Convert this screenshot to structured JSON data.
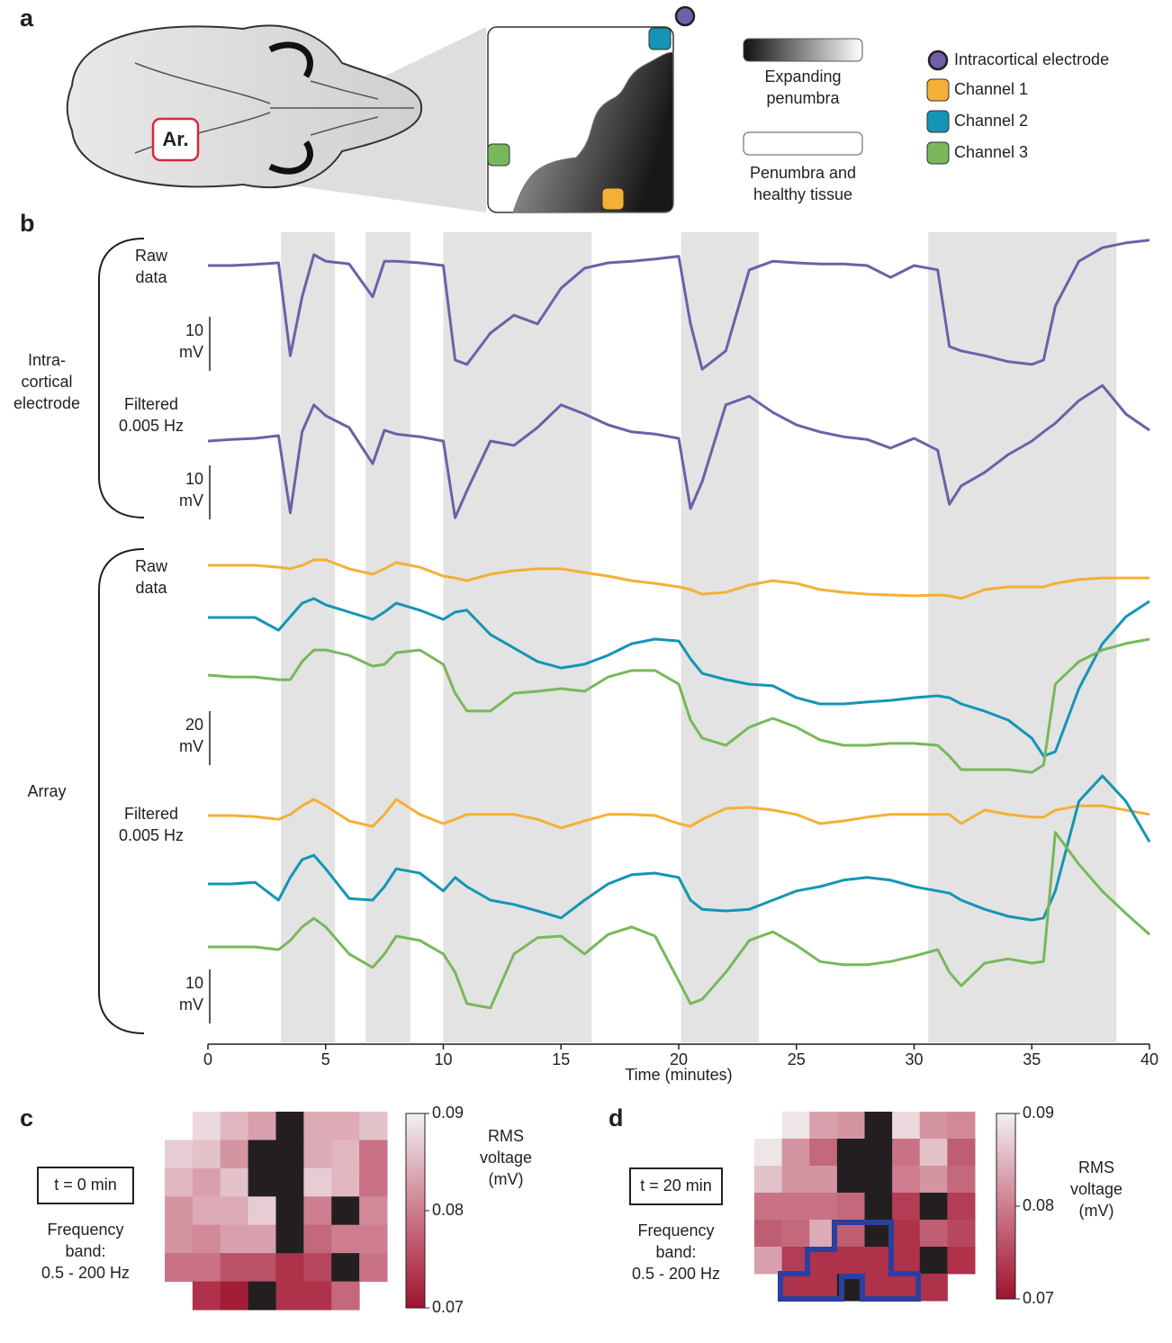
{
  "panel_labels": [
    "a",
    "b",
    "c",
    "d"
  ],
  "panel_a": {
    "region_label": "Ar.",
    "legend_gradient": [
      "Expanding",
      "penumbra"
    ],
    "legend_white": [
      "Penumbra and",
      "healthy tissue"
    ],
    "legend": [
      {
        "label": "Intracortical electrode",
        "color": "#6f5fa8",
        "shape": "circle"
      },
      {
        "label": "Channel 1",
        "color": "#f4b036",
        "shape": "square"
      },
      {
        "label": "Channel 2",
        "color": "#1595b5",
        "shape": "square"
      },
      {
        "label": "Channel 3",
        "color": "#78b85a",
        "shape": "square"
      }
    ]
  },
  "chart_data": [
    {
      "type": "line",
      "xlabel": "Time (minutes)",
      "xlim": [
        0,
        40
      ],
      "xticks": [
        0,
        5,
        10,
        15,
        20,
        25,
        30,
        35,
        40
      ],
      "shaded": [
        [
          3.1,
          5.4
        ],
        [
          6.7,
          8.6
        ],
        [
          10,
          16.3
        ],
        [
          20.1,
          23.4
        ],
        [
          30.6,
          38.6
        ]
      ],
      "shade_color": "#e3e3e3",
      "x": [
        0,
        1,
        2,
        3,
        3.5,
        4,
        4.5,
        5,
        6,
        7,
        7.5,
        8,
        9,
        10,
        10.5,
        11,
        12,
        13,
        14,
        15,
        16,
        17,
        18,
        19,
        20,
        20.5,
        21,
        22,
        23,
        24,
        25,
        26,
        27,
        28,
        29,
        30,
        31,
        31.5,
        32,
        33,
        34,
        35,
        35.5,
        36,
        37,
        38,
        39,
        40
      ],
      "groups": [
        {
          "label": [
            "Intra-",
            "cortical",
            "electrode"
          ],
          "rows": [
            {
              "label": [
                "Raw",
                "data"
              ],
              "scale_bar": 10,
              "unit": "mV",
              "series": [
                {
                  "color": "#6f5fa8",
                  "values": [
                    0,
                    0,
                    0.2,
                    0.5,
                    -16.7,
                    -5.8,
                    2,
                    0.8,
                    0.3,
                    -5.8,
                    0.8,
                    0.8,
                    0.5,
                    0,
                    -17.5,
                    -18.3,
                    -12.5,
                    -9.2,
                    -10.8,
                    -4.2,
                    -0.5,
                    0.5,
                    0.8,
                    1.2,
                    1.7,
                    -10.8,
                    -19.2,
                    -15.8,
                    -0.8,
                    0.8,
                    0.5,
                    0.3,
                    0.3,
                    0,
                    -2.2,
                    0,
                    -0.8,
                    -15,
                    -15.8,
                    -16.7,
                    -17.8,
                    -18.3,
                    -17.5,
                    -7.5,
                    0.8,
                    3.3,
                    4.2,
                    4.7
                  ]
                }
              ]
            },
            {
              "label": [
                "Filtered",
                "0.005 Hz"
              ],
              "scale_bar": 10,
              "unit": "mV",
              "series": [
                {
                  "color": "#6f5fa8",
                  "values": [
                    0,
                    0.3,
                    0.5,
                    1,
                    -13.3,
                    1.7,
                    6.7,
                    4.7,
                    2.5,
                    -4.2,
                    2,
                    1.3,
                    0.8,
                    0,
                    -14.2,
                    -9.2,
                    0,
                    -0.8,
                    2.5,
                    6.7,
                    5,
                    3,
                    1.7,
                    1.3,
                    0.5,
                    -12.5,
                    -7.5,
                    6.7,
                    8.3,
                    5.3,
                    3,
                    1.7,
                    0.8,
                    0.3,
                    -1.3,
                    0.5,
                    -1.7,
                    -11.7,
                    -8.3,
                    -5.8,
                    -2.5,
                    0,
                    1.7,
                    3.3,
                    7.5,
                    10.3,
                    5,
                    2
                  ]
                }
              ]
            }
          ]
        },
        {
          "label": [
            "Array"
          ],
          "rows": [
            {
              "label": [
                "Raw",
                "data"
              ],
              "scale_bar": 20,
              "unit": "mV",
              "series": [
                {
                  "color": "#f4b036",
                  "values": [
                    0,
                    0,
                    0,
                    -0.7,
                    -1.3,
                    0,
                    2,
                    2,
                    -1.3,
                    -3.3,
                    -1.3,
                    1,
                    -0.7,
                    -4,
                    -4.7,
                    -5.7,
                    -3.3,
                    -2,
                    -1.3,
                    -1.3,
                    -2.7,
                    -4,
                    -5.7,
                    -6.7,
                    -8,
                    -9,
                    -10.7,
                    -10,
                    -7.3,
                    -5.7,
                    -6.7,
                    -9,
                    -10,
                    -10.7,
                    -11,
                    -11.3,
                    -11,
                    -11.3,
                    -12.3,
                    -9,
                    -8,
                    -8,
                    -8,
                    -6.7,
                    -5.3,
                    -4.7,
                    -4.7,
                    -4.7
                  ]
                },
                {
                  "color": "#1595b5",
                  "values": [
                    0,
                    0,
                    0,
                    -4.7,
                    0.3,
                    5.3,
                    7,
                    4.7,
                    2,
                    -0.7,
                    2,
                    5.3,
                    2.7,
                    -0.7,
                    2,
                    2.7,
                    -6.3,
                    -11.3,
                    -16.3,
                    -18.7,
                    -17.3,
                    -14,
                    -9.7,
                    -8,
                    -8.7,
                    -15.3,
                    -20.7,
                    -23,
                    -24.7,
                    -25.3,
                    -29.7,
                    -32,
                    -32,
                    -31.3,
                    -30.7,
                    -29.7,
                    -29,
                    -29.7,
                    -32,
                    -34.7,
                    -38,
                    -44.7,
                    -51.3,
                    -49.7,
                    -26.3,
                    -9.7,
                    0.3,
                    6
                  ]
                },
                {
                  "color": "#78b85a",
                  "values": [
                    0,
                    -0.7,
                    -0.7,
                    -1.7,
                    -1.7,
                    5,
                    9.3,
                    9.3,
                    7.3,
                    3.3,
                    4,
                    8.3,
                    9.3,
                    4,
                    -6.7,
                    -13.3,
                    -13.3,
                    -6.7,
                    -6,
                    -5,
                    -6,
                    -0.7,
                    1.7,
                    1.7,
                    -3.3,
                    -16.7,
                    -23.3,
                    -26,
                    -19.3,
                    -16,
                    -19.3,
                    -24,
                    -26,
                    -26,
                    -25.3,
                    -25.3,
                    -26,
                    -30,
                    -35,
                    -35,
                    -35,
                    -36,
                    -33.3,
                    -3.3,
                    5,
                    9.3,
                    11.7,
                    13.3
                  ]
                }
              ]
            },
            {
              "label": [
                "Filtered",
                "0.005 Hz"
              ],
              "scale_bar": 10,
              "unit": "mV",
              "series": [
                {
                  "color": "#f4b036",
                  "values": [
                    0,
                    0,
                    -0.2,
                    -0.7,
                    0.2,
                    1.8,
                    3,
                    1.8,
                    -1,
                    -2,
                    0.2,
                    3,
                    0.2,
                    -1.5,
                    -0.7,
                    0.2,
                    0.2,
                    0.2,
                    -0.7,
                    -2.3,
                    -1,
                    0.2,
                    0.2,
                    0,
                    -1.5,
                    -2,
                    -0.7,
                    1.3,
                    1.5,
                    1,
                    0.2,
                    -1.5,
                    -1,
                    -0.3,
                    0.2,
                    0.2,
                    0.2,
                    0.2,
                    -1.5,
                    1,
                    0.2,
                    -0.3,
                    -0.3,
                    1,
                    1.8,
                    1.8,
                    1,
                    0.2
                  ]
                },
                {
                  "color": "#1595b5",
                  "values": [
                    0,
                    0,
                    0.3,
                    -3,
                    1.2,
                    4.5,
                    5.3,
                    2.8,
                    -2.7,
                    -3,
                    -0.5,
                    2.8,
                    2,
                    -1.3,
                    1.2,
                    -0.5,
                    -3,
                    -3.8,
                    -5,
                    -6.3,
                    -3,
                    0,
                    1.7,
                    2,
                    1.2,
                    -3,
                    -4.7,
                    -5,
                    -4.7,
                    -3,
                    -1.3,
                    -0.5,
                    0.7,
                    1.2,
                    0.7,
                    -0.5,
                    -1.3,
                    -1.7,
                    -3,
                    -4.7,
                    -6,
                    -6.7,
                    -6.3,
                    -1.3,
                    15.3,
                    20,
                    15.3,
                    7.8
                  ]
                },
                {
                  "color": "#78b85a",
                  "values": [
                    0,
                    0,
                    0,
                    -0.5,
                    1.2,
                    3.7,
                    5.3,
                    3.7,
                    -1.3,
                    -3.8,
                    -1.3,
                    2,
                    1.2,
                    -1.3,
                    -4.7,
                    -10.5,
                    -11.3,
                    -1.3,
                    1.7,
                    2,
                    -1.3,
                    2.3,
                    3.7,
                    2,
                    -6.3,
                    -10.5,
                    -9.7,
                    -4.7,
                    1.2,
                    2.8,
                    0.3,
                    -2.7,
                    -3.3,
                    -3.3,
                    -2.7,
                    -1.7,
                    -0.5,
                    -4.7,
                    -7.2,
                    -3,
                    -2.2,
                    -3,
                    -2.7,
                    21.2,
                    15.3,
                    10.3,
                    6.2,
                    2.3
                  ]
                }
              ]
            }
          ]
        }
      ]
    },
    {
      "type": "heatmap",
      "box_text": "t = 0 min",
      "annotation": [
        "Frequency",
        "band:",
        "0.5 - 200 Hz"
      ],
      "vlim": [
        0.07,
        0.09
      ],
      "cbar_ticks": [
        0.09,
        0.08,
        0.07
      ],
      "cbar_label": [
        "RMS",
        "voltage",
        "(mV)"
      ],
      "colormap": [
        "#a0122d",
        "#cd7d8f",
        "#f2f0f0"
      ],
      "masked_color": "#231f20",
      "masked": [
        [
          0,
          4
        ],
        [
          1,
          3
        ],
        [
          1,
          4
        ],
        [
          2,
          3
        ],
        [
          2,
          4
        ],
        [
          3,
          4
        ],
        [
          3,
          6
        ],
        [
          4,
          4
        ],
        [
          5,
          6
        ],
        [
          6,
          3
        ]
      ],
      "values": [
        [
          null,
          0.088,
          0.085,
          0.083,
          null,
          0.084,
          0.084,
          0.086
        ],
        [
          0.087,
          0.086,
          0.082,
          null,
          null,
          0.084,
          0.085,
          0.079
        ],
        [
          0.085,
          0.083,
          0.086,
          null,
          null,
          0.087,
          0.085,
          0.079
        ],
        [
          0.082,
          0.084,
          0.084,
          0.087,
          null,
          0.08,
          null,
          0.081
        ],
        [
          0.082,
          0.081,
          0.083,
          0.083,
          null,
          0.078,
          0.08,
          0.08
        ],
        [
          0.079,
          0.079,
          0.076,
          0.076,
          0.073,
          0.075,
          null,
          0.079
        ],
        [
          null,
          0.073,
          0.071,
          null,
          0.073,
          0.073,
          0.078,
          null
        ]
      ]
    },
    {
      "type": "heatmap",
      "box_text": "t = 20 min",
      "annotation": [
        "Frequency",
        "band:",
        "0.5 - 200 Hz"
      ],
      "vlim": [
        0.07,
        0.09
      ],
      "cbar_ticks": [
        0.09,
        0.08,
        0.07
      ],
      "cbar_label": [
        "RMS",
        "voltage",
        "(mV)"
      ],
      "colormap": [
        "#a0122d",
        "#cd7d8f",
        "#f2f0f0"
      ],
      "masked_color": "#231f20",
      "masked": [
        [
          0,
          4
        ],
        [
          1,
          3
        ],
        [
          1,
          4
        ],
        [
          2,
          3
        ],
        [
          2,
          4
        ],
        [
          3,
          4
        ],
        [
          3,
          6
        ],
        [
          4,
          4
        ],
        [
          5,
          6
        ],
        [
          6,
          3
        ]
      ],
      "values": [
        [
          null,
          0.089,
          0.083,
          0.082,
          null,
          0.088,
          0.082,
          0.081
        ],
        [
          0.089,
          0.082,
          0.078,
          null,
          null,
          0.079,
          0.086,
          0.077
        ],
        [
          0.086,
          0.082,
          0.082,
          null,
          null,
          0.08,
          0.082,
          0.078
        ],
        [
          0.079,
          0.079,
          0.079,
          0.078,
          null,
          0.074,
          null,
          0.074
        ],
        [
          0.077,
          0.078,
          0.084,
          0.077,
          null,
          0.073,
          0.077,
          0.075
        ],
        [
          0.083,
          0.074,
          0.073,
          0.073,
          0.073,
          0.073,
          null,
          0.073
        ],
        [
          null,
          0.073,
          0.073,
          null,
          0.073,
          0.073,
          0.073,
          null
        ]
      ]
    }
  ]
}
